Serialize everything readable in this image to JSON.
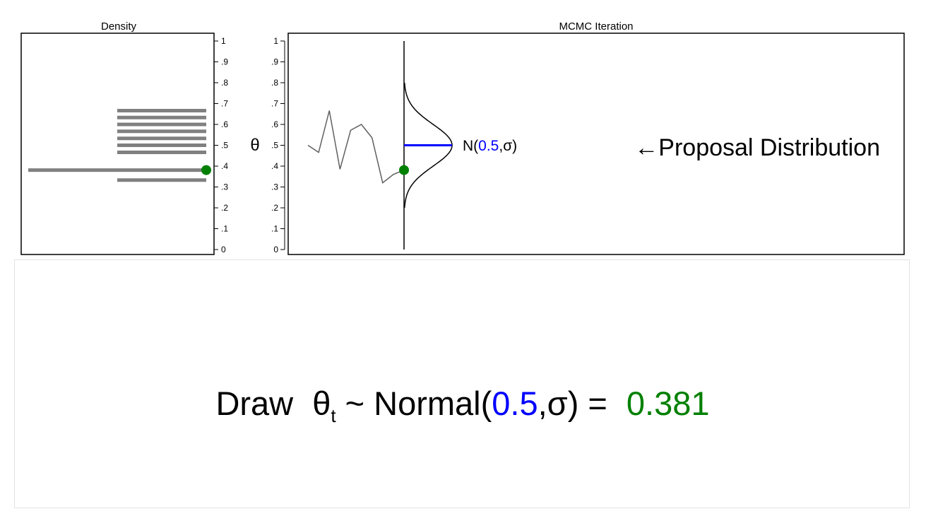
{
  "chart_data": [
    {
      "type": "bar",
      "title": "Density",
      "orientation": "horizontal",
      "ylim": [
        0,
        1
      ],
      "yticks": [
        "0",
        ".1",
        ".2",
        ".3",
        ".4",
        ".5",
        ".6",
        ".7",
        ".8",
        ".9",
        "1"
      ],
      "y_axis_side": "right",
      "values": [
        0.333,
        0.466,
        0.5,
        0.533,
        0.567,
        0.6,
        0.633,
        0.666
      ],
      "x_start": [
        0.5,
        0.5,
        0.5,
        0.5,
        0.5,
        0.5,
        0.5,
        0.5
      ],
      "x_end": [
        1.0,
        1.0,
        1.0,
        1.0,
        1.0,
        1.0,
        1.0,
        1.0
      ],
      "current_draw": {
        "value": 0.381,
        "x_start": 0.0,
        "x_end": 1.0
      },
      "colors": {
        "bars": "#808080",
        "draw_point": "#008000"
      }
    },
    {
      "type": "line",
      "title": "MCMC Iteration",
      "ylabel": "θ",
      "ylim": [
        0,
        1
      ],
      "yticks": [
        "0",
        ".1",
        ".2",
        ".3",
        ".4",
        ".5",
        ".6",
        ".7",
        ".8",
        ".9",
        "1"
      ],
      "x": [
        1,
        2,
        3,
        4,
        5,
        6,
        7,
        8,
        9,
        10
      ],
      "trace": [
        0.5,
        0.466,
        0.666,
        0.385,
        0.572,
        0.6,
        0.536,
        0.32,
        0.36,
        0.381
      ],
      "current_iteration": 10,
      "current_value": 0.381,
      "proposal": {
        "mean": 0.5,
        "sd_display": 0.1,
        "label_prefix": "N(",
        "label_mean": "0.5",
        "label_suffix": ",σ)"
      },
      "annotation": "←Proposal Distribution",
      "colors": {
        "trace": "#606060",
        "mean_line": "#0000ff",
        "draw_point": "#008000"
      }
    }
  ],
  "caption": {
    "draw": "Draw",
    "theta": "θ",
    "subscript": "t",
    "tilde": "~",
    "normal_open": "Normal(",
    "mean": "0.5",
    "sigma_close": ",σ)",
    "equals": "=",
    "value": "0.381"
  }
}
